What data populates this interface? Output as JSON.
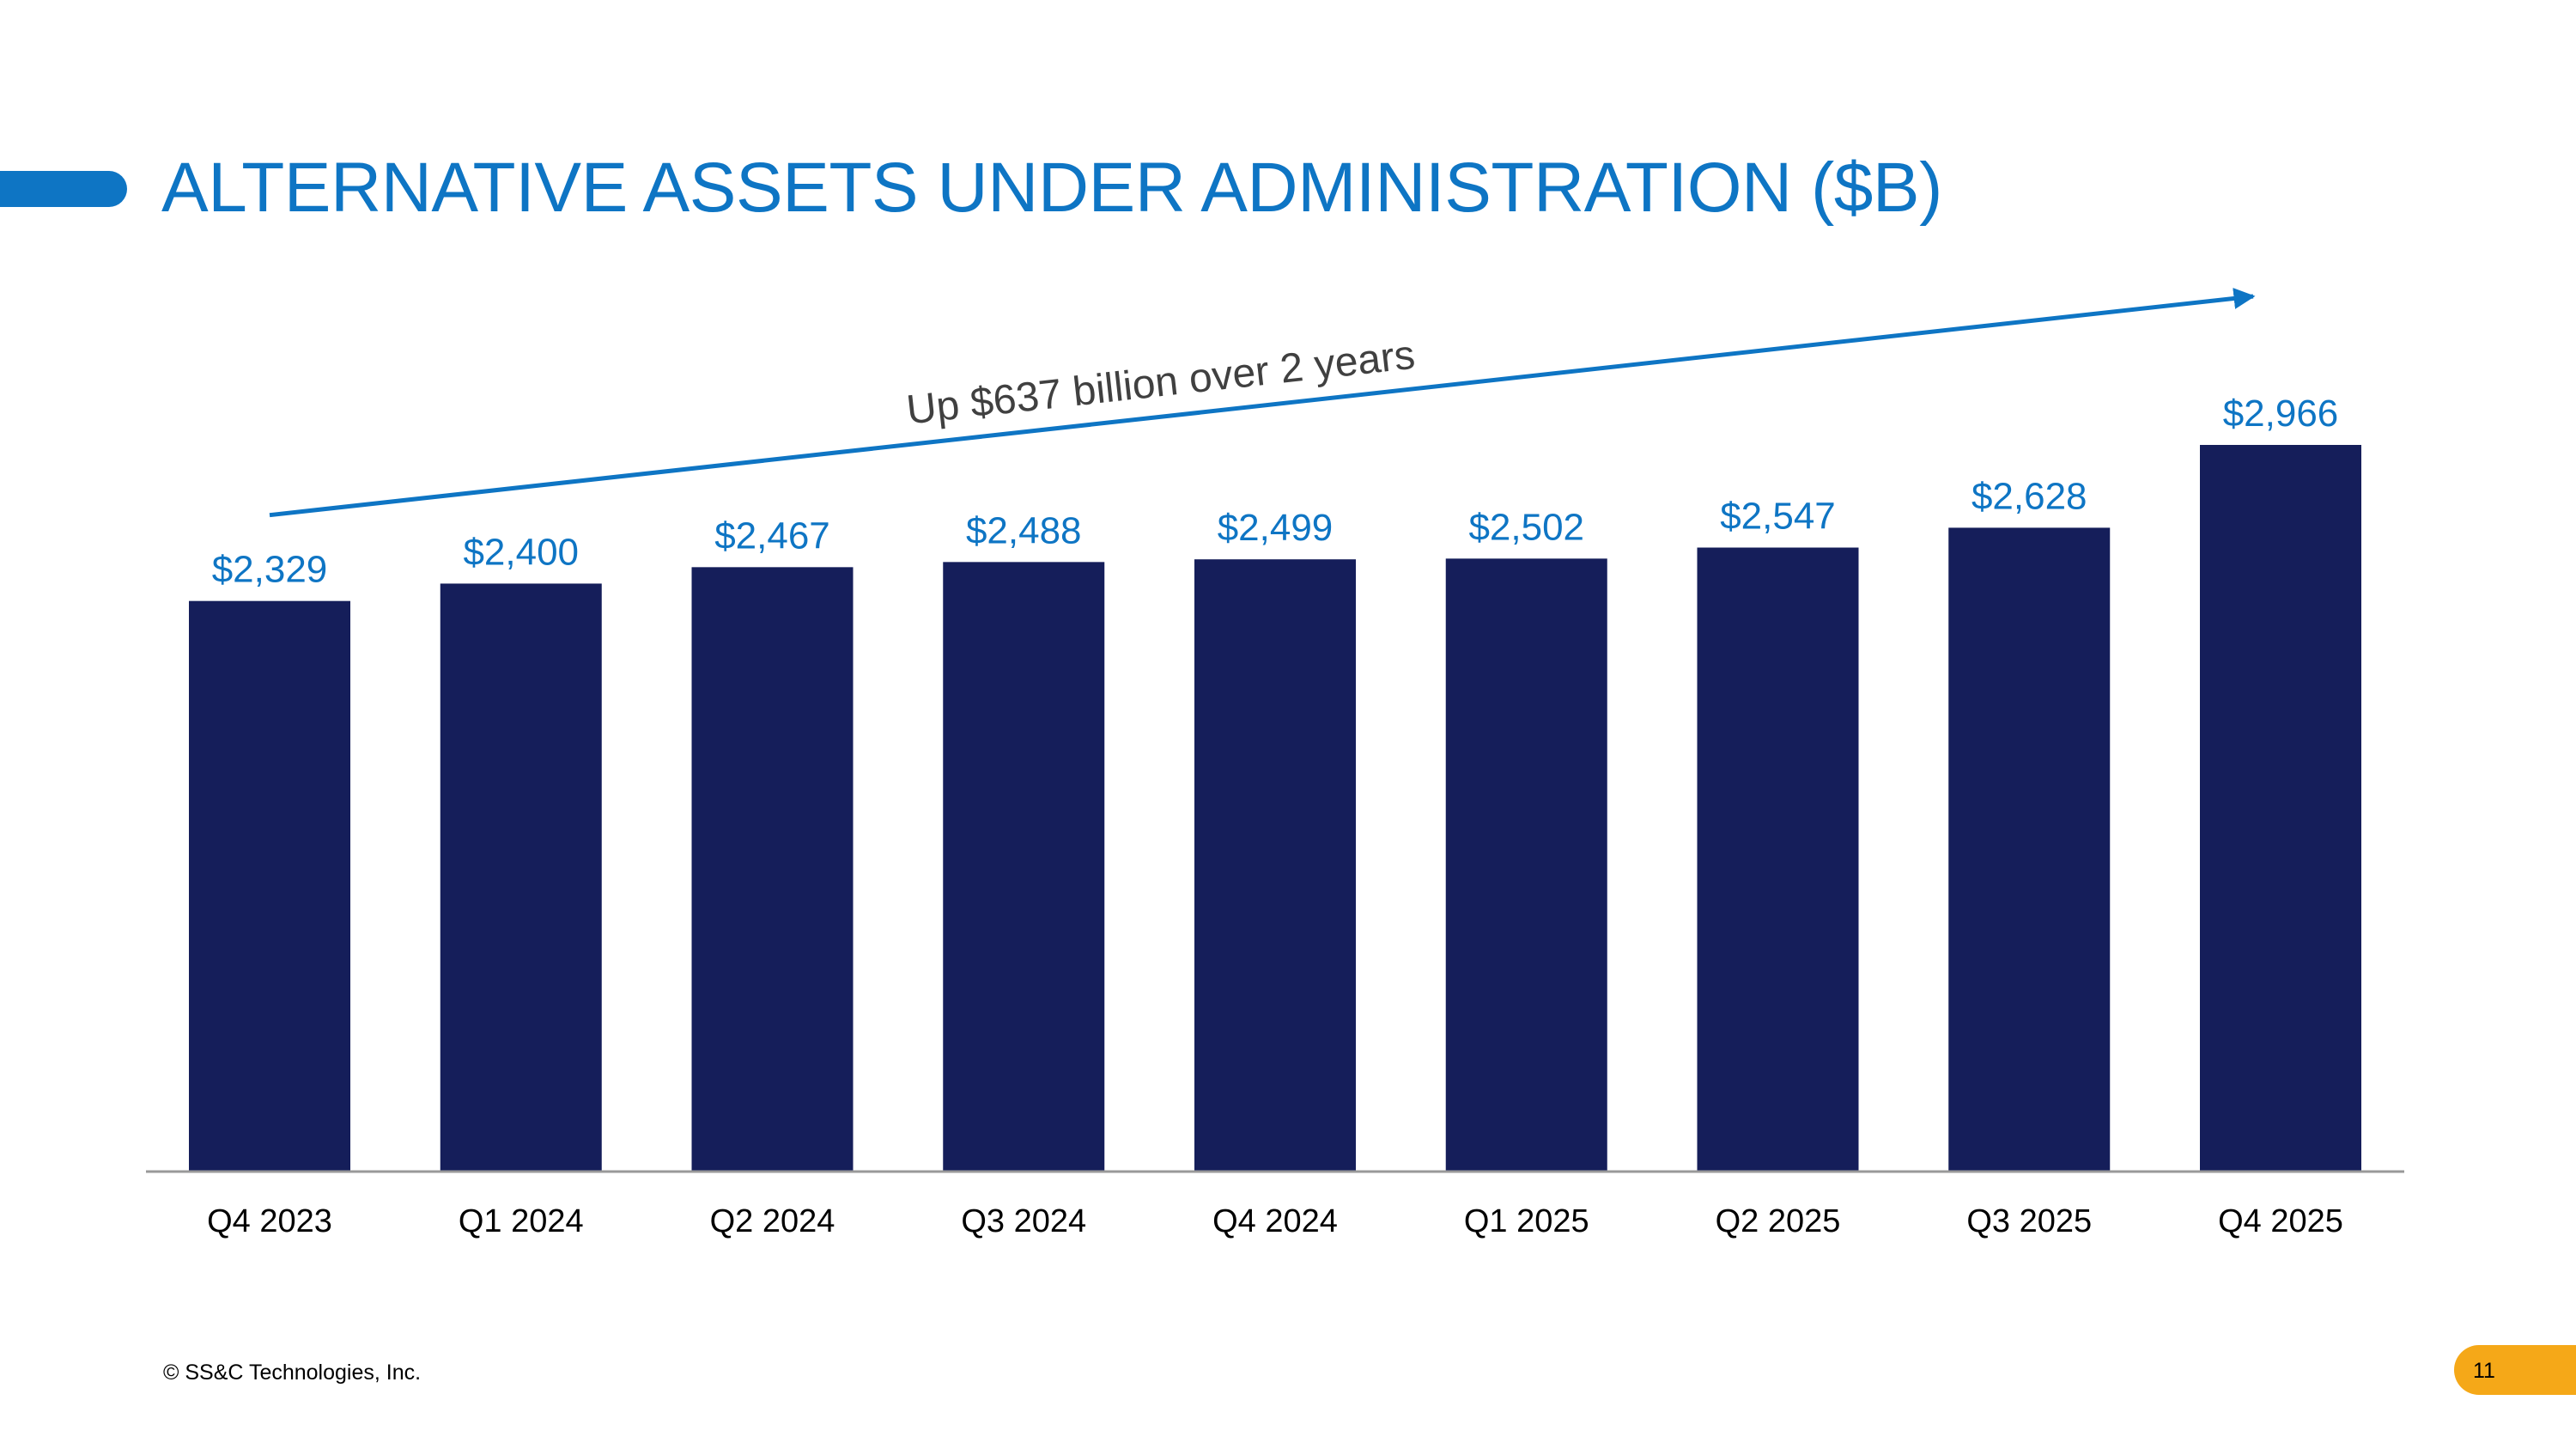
{
  "slide": {
    "title": "ALTERNATIVE ASSETS UNDER ADMINISTRATION ($B)",
    "footer": "© SS&C Technologies, Inc.",
    "page_number": "11"
  },
  "colors": {
    "title": "#0E75C4",
    "bar": "#151E5A",
    "label": "#0E75C4",
    "axis": "#999999",
    "accent_bar": "#0E75C4",
    "page_badge": "#F5A818"
  },
  "chart_data": {
    "type": "bar",
    "title": "ALTERNATIVE ASSETS UNDER ADMINISTRATION ($B)",
    "categories": [
      "Q4 2023",
      "Q1 2024",
      "Q2 2024",
      "Q3 2024",
      "Q4 2024",
      "Q1 2025",
      "Q2 2025",
      "Q3 2025",
      "Q4 2025"
    ],
    "values": [
      2329,
      2400,
      2467,
      2488,
      2499,
      2502,
      2547,
      2628,
      2966
    ],
    "data_labels": [
      "$2,329",
      "$2,400",
      "$2,467",
      "$2,488",
      "$2,499",
      "$2,502",
      "$2,547",
      "$2,628",
      "$2,966"
    ],
    "xlabel": "",
    "ylabel": "",
    "ylim": [
      0,
      2966
    ],
    "grid": false,
    "legend": "none",
    "annotation": {
      "text": "Up $637 billion over 2 years",
      "from_category": "Q4 2023",
      "to_category": "Q4 2025",
      "style": "arrow"
    }
  }
}
